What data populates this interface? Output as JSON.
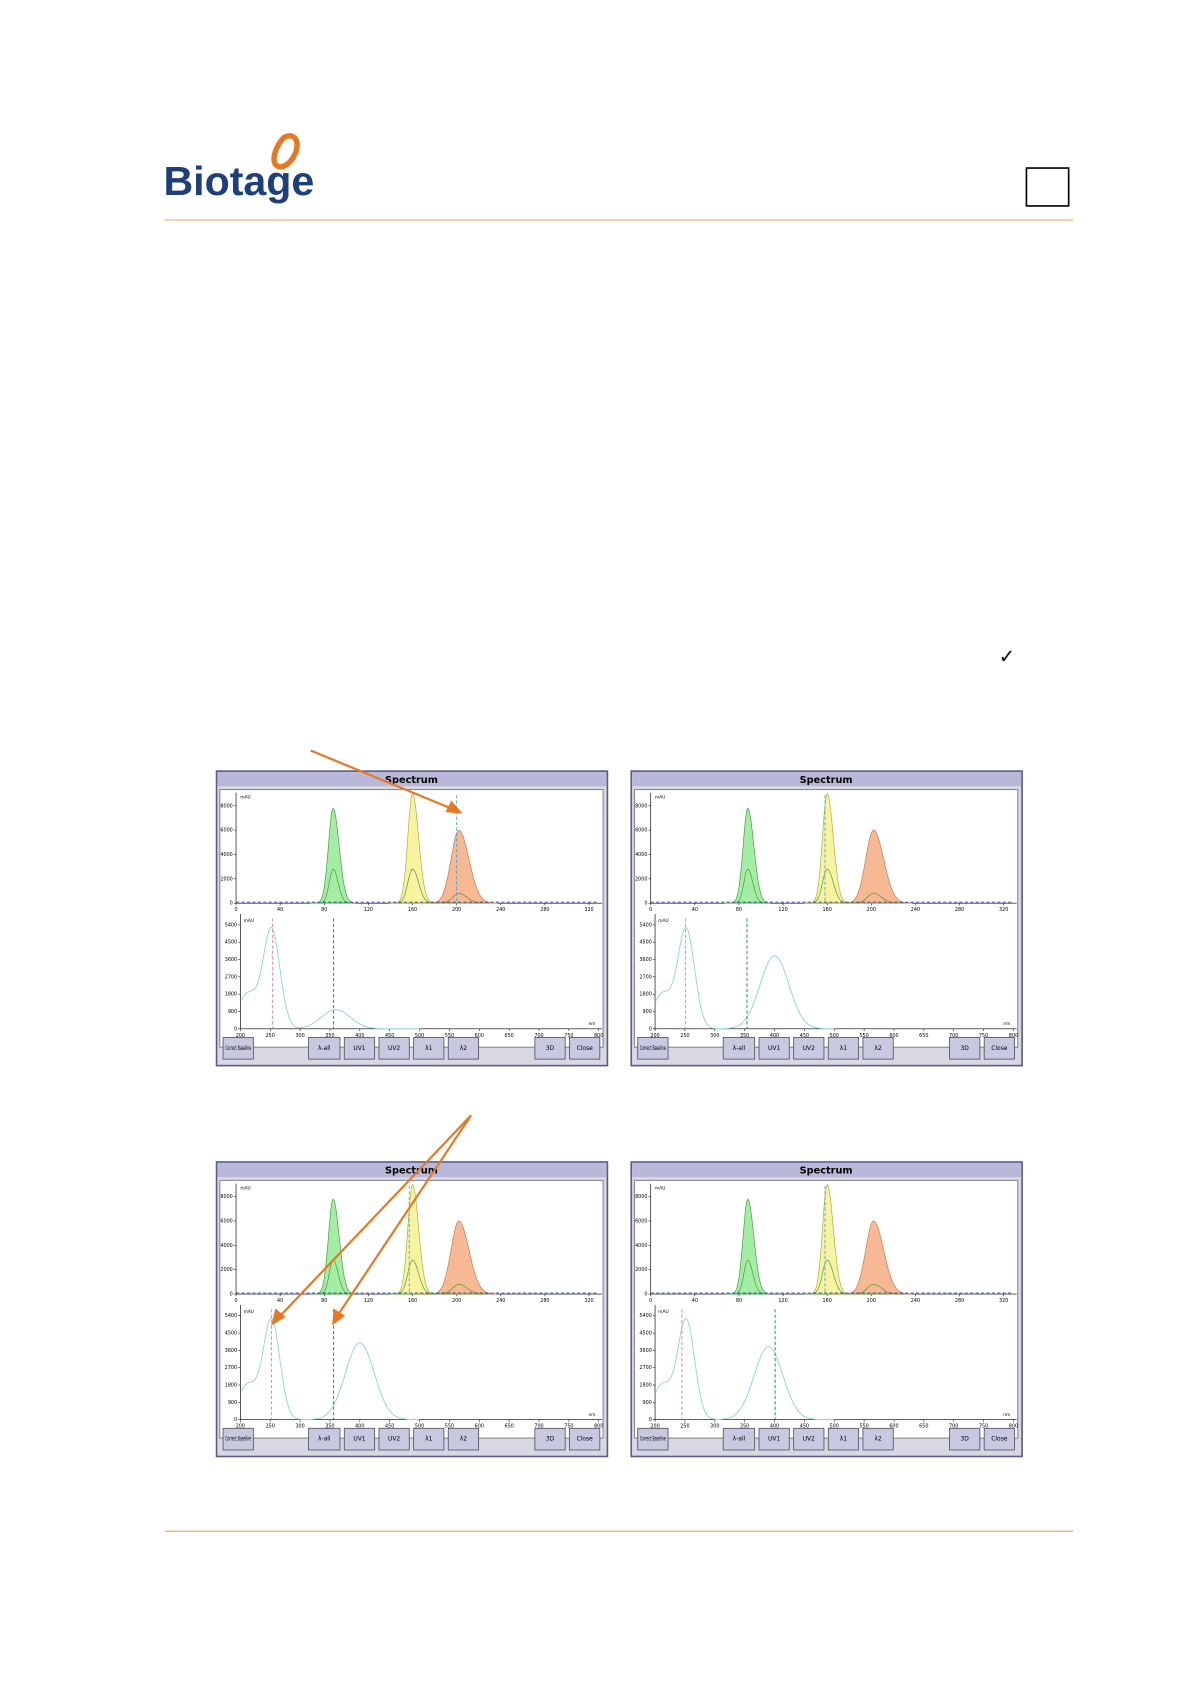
{
  "header": {
    "logo": "Biotage"
  },
  "checkmark": "✓",
  "panel": {
    "title": "Spectrum",
    "top_unit": "mAU",
    "bottom_unit": "mAU",
    "bottom_x_unit": "nm",
    "top_xticks": [
      0,
      40,
      80,
      120,
      160,
      200,
      240,
      280,
      320
    ],
    "top_yticks": [
      0,
      2000,
      4000,
      6000,
      8000
    ],
    "bottom_xticks": [
      200,
      250,
      300,
      350,
      400,
      450,
      500,
      550,
      600,
      650,
      700,
      750,
      800
    ],
    "bottom_yticks": [
      0,
      900,
      1800,
      2700,
      3600,
      4500,
      5400
    ],
    "buttons": [
      "Correct Baseline",
      "λ-all",
      "UV1",
      "UV2",
      "λ1",
      "λ2",
      "3D",
      "Close"
    ]
  },
  "screenshots": [
    {
      "cursor": 200,
      "lambda1": 254,
      "lambda2": 356
    },
    {
      "cursor": 158,
      "lambda1": 251,
      "lambda2": 354
    },
    {
      "cursor": 157,
      "lambda1": 252,
      "lambda2": 356
    },
    {
      "cursor": 158,
      "lambda1": 245,
      "lambda2": 401
    }
  ]
}
